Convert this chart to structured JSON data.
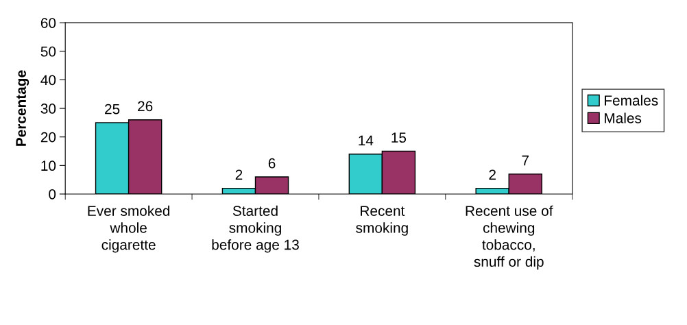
{
  "chart_data": {
    "type": "bar",
    "ylabel": "Percentage",
    "categories": [
      "Ever smoked whole cigarette",
      "Started smoking before age 13",
      "Recent smoking",
      "Recent use of chewing tobacco, snuff or dip"
    ],
    "series": [
      {
        "name": "Females",
        "color": "#33cccc",
        "values": [
          25,
          2,
          14,
          2
        ]
      },
      {
        "name": "Males",
        "color": "#993366",
        "values": [
          26,
          6,
          15,
          7
        ]
      }
    ],
    "ylim": [
      0,
      60
    ],
    "yticks": [
      0,
      10,
      20,
      30,
      40,
      50,
      60
    ],
    "data_labels": true,
    "grid": false,
    "legend": "right"
  }
}
